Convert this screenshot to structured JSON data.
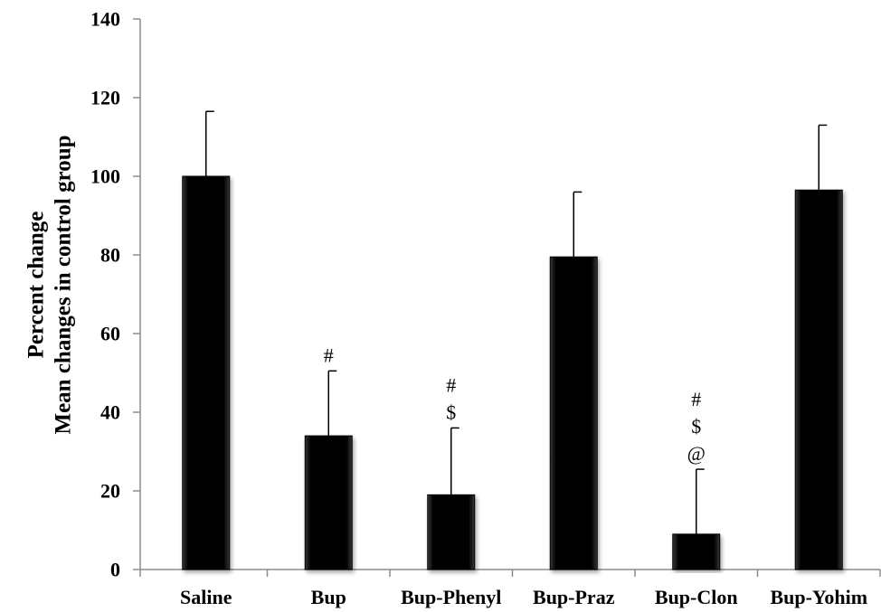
{
  "chart_data": {
    "type": "bar",
    "title": "",
    "xlabel": "",
    "ylabel_lines": [
      "Percent change",
      "Mean changes in control group"
    ],
    "categories": [
      "Saline",
      "Bup",
      "Bup-Phenyl",
      "Bup-Praz",
      "Bup-Clon",
      "Bup-Yohim"
    ],
    "values": [
      100,
      34,
      19,
      79.5,
      9,
      96.5
    ],
    "error_upper": [
      16.5,
      16.5,
      17,
      16.5,
      16.5,
      16.5
    ],
    "annotations": [
      [],
      [
        "#"
      ],
      [
        "#",
        "$"
      ],
      [],
      [
        "#",
        "$",
        "@"
      ],
      []
    ],
    "ylim": [
      0,
      140
    ],
    "yticks": [
      0,
      20,
      40,
      60,
      80,
      100,
      120,
      140
    ],
    "grid": false,
    "legend": "none",
    "bar_color": "#000000"
  }
}
